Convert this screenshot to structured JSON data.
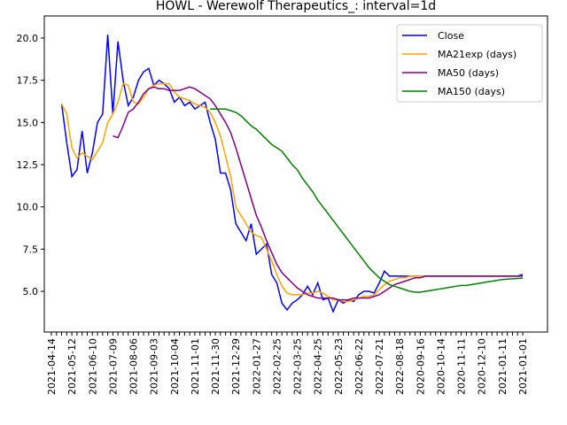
{
  "chart_data": {
    "type": "line",
    "title": "HOWL - Werewolf Therapeutics_: interval=1d",
    "categories": [
      "2021-04-14",
      null,
      null,
      null,
      "2021-05-12",
      null,
      null,
      null,
      "2021-06-10",
      null,
      null,
      null,
      "2021-07-09",
      null,
      null,
      null,
      "2021-08-06",
      null,
      null,
      null,
      "2021-09-03",
      null,
      null,
      null,
      "2021-10-04",
      null,
      null,
      null,
      "2021-11-01",
      null,
      null,
      null,
      "2021-11-30",
      null,
      null,
      null,
      "2021-12-29",
      null,
      null,
      null,
      "2022-01-27",
      null,
      null,
      null,
      "2022-02-25",
      null,
      null,
      null,
      "2022-03-25",
      null,
      null,
      null,
      "2022-04-25",
      null,
      null,
      null,
      "2022-05-23",
      null,
      null,
      null,
      "2022-06-22",
      null,
      null,
      null,
      "2022-07-21",
      null,
      null,
      null,
      "2022-08-18",
      null,
      null,
      null,
      "2020-09-16",
      null,
      null,
      null,
      "2020-10-14",
      null,
      null,
      null,
      "2020-11-11",
      null,
      null,
      null,
      "2020-12-10",
      null,
      null,
      null,
      "2021-01-11",
      null,
      null,
      null,
      "2021-01-01"
    ],
    "series": [
      {
        "name": "Close",
        "color": "#0000ff",
        "values": [
          null,
          null,
          16.1,
          13.8,
          11.8,
          12.2,
          14.5,
          12.0,
          13.2,
          15.0,
          15.5,
          20.2,
          15.5,
          19.8,
          17.5,
          16.0,
          16.5,
          17.5,
          18.0,
          18.2,
          17.2,
          17.5,
          17.3,
          17.0,
          16.2,
          16.5,
          16.0,
          16.2,
          15.8,
          16.0,
          16.2,
          15.0,
          14.0,
          12.0,
          12.0,
          11.0,
          9.0,
          8.5,
          8.0,
          9.0,
          7.2,
          7.5,
          7.8,
          6.0,
          5.5,
          4.3,
          3.9,
          4.3,
          4.5,
          4.8,
          5.3,
          4.8,
          5.5,
          4.5,
          4.6,
          3.8,
          4.5,
          4.3,
          4.5,
          4.4,
          4.8,
          5.0,
          5.0,
          4.9,
          5.5,
          6.2,
          5.9,
          5.9,
          5.9,
          5.9,
          5.9,
          5.9,
          5.9,
          5.9,
          5.9,
          5.9,
          5.9,
          5.9,
          5.9,
          5.9,
          5.9,
          5.9,
          5.9,
          5.9,
          5.9,
          5.9,
          5.9,
          5.9,
          5.9,
          5.9,
          5.9,
          5.9,
          6.0
        ]
      },
      {
        "name": "MA21exp (days)",
        "color": "#ffa500",
        "values": [
          null,
          null,
          16.1,
          15.5,
          13.5,
          12.9,
          13.2,
          13.0,
          12.8,
          13.3,
          13.8,
          15.0,
          15.5,
          16.2,
          17.3,
          17.2,
          16.2,
          16.1,
          16.5,
          17.0,
          17.2,
          17.3,
          17.3,
          17.3,
          16.8,
          16.5,
          16.4,
          16.3,
          16.1,
          16.0,
          15.9,
          15.6,
          15.0,
          14.2,
          13.0,
          11.8,
          10.0,
          9.5,
          9.0,
          8.5,
          8.3,
          8.2,
          7.5,
          6.8,
          6.0,
          5.3,
          4.9,
          4.8,
          4.8,
          4.8,
          4.9,
          4.9,
          5.0,
          4.9,
          4.7,
          4.5,
          4.5,
          4.4,
          4.4,
          4.5,
          4.6,
          4.7,
          4.7,
          4.8,
          5.1,
          5.4,
          5.6,
          5.7,
          5.8,
          5.8,
          5.9,
          5.9,
          5.9,
          5.9,
          5.9,
          5.9,
          5.9,
          5.9,
          5.9,
          5.9,
          5.9,
          5.9,
          5.9,
          5.9,
          5.9,
          5.9,
          5.9,
          5.9,
          5.9,
          5.9,
          5.9,
          5.9,
          5.9
        ]
      },
      {
        "name": "MA50 (days)",
        "color": "#800080",
        "values": [
          null,
          null,
          null,
          null,
          null,
          null,
          null,
          null,
          null,
          null,
          null,
          null,
          14.2,
          14.1,
          14.8,
          15.6,
          15.8,
          16.2,
          16.7,
          17.0,
          17.1,
          17.0,
          17.0,
          16.9,
          16.9,
          16.9,
          17.0,
          17.1,
          17.0,
          16.8,
          16.6,
          16.4,
          16.0,
          15.5,
          15.0,
          14.4,
          13.5,
          12.5,
          11.5,
          10.5,
          9.5,
          8.8,
          8.0,
          7.3,
          6.6,
          6.1,
          5.8,
          5.5,
          5.2,
          5.0,
          4.8,
          4.7,
          4.6,
          4.6,
          4.6,
          4.6,
          4.5,
          4.5,
          4.5,
          4.6,
          4.6,
          4.6,
          4.6,
          4.7,
          4.8,
          5.0,
          5.2,
          5.4,
          5.5,
          5.6,
          5.7,
          5.8,
          5.8,
          5.9,
          5.9,
          5.9,
          5.9,
          5.9,
          5.9,
          5.9,
          5.9,
          5.9,
          5.9,
          5.9,
          5.9,
          5.9,
          5.9,
          5.9,
          5.9,
          5.9,
          5.9,
          5.9,
          5.9
        ]
      },
      {
        "name": "MA150 (days)",
        "color": "#008000",
        "values": [
          null,
          null,
          null,
          null,
          null,
          null,
          null,
          null,
          null,
          null,
          null,
          null,
          null,
          null,
          null,
          null,
          null,
          null,
          null,
          null,
          null,
          null,
          null,
          null,
          null,
          null,
          null,
          null,
          null,
          null,
          null,
          15.8,
          15.8,
          15.8,
          15.8,
          15.7,
          15.6,
          15.4,
          15.1,
          14.8,
          14.6,
          14.3,
          14.0,
          13.7,
          13.5,
          13.3,
          12.9,
          12.5,
          12.2,
          11.7,
          11.3,
          10.9,
          10.4,
          10.0,
          9.6,
          9.2,
          8.8,
          8.4,
          8.0,
          7.6,
          7.2,
          6.8,
          6.4,
          6.1,
          5.8,
          5.6,
          5.4,
          5.3,
          5.2,
          5.1,
          5.0,
          4.95,
          4.95,
          5.0,
          5.05,
          5.1,
          5.15,
          5.2,
          5.25,
          5.3,
          5.35,
          5.35,
          5.4,
          5.45,
          5.5,
          5.55,
          5.6,
          5.65,
          5.7,
          5.72,
          5.74,
          5.76,
          5.78
        ]
      }
    ],
    "ylim": [
      2.59,
      21.31
    ],
    "yticks": [
      {
        "value": 5,
        "label": "5.0"
      },
      {
        "value": 7.5,
        "label": "7.5"
      },
      {
        "value": 10,
        "label": "10.0"
      },
      {
        "value": 12.5,
        "label": "12.5"
      },
      {
        "value": 15,
        "label": "15.0"
      },
      {
        "value": 17.5,
        "label": "17.5"
      },
      {
        "value": 20,
        "label": "20.0"
      }
    ],
    "legend": "upper right"
  }
}
